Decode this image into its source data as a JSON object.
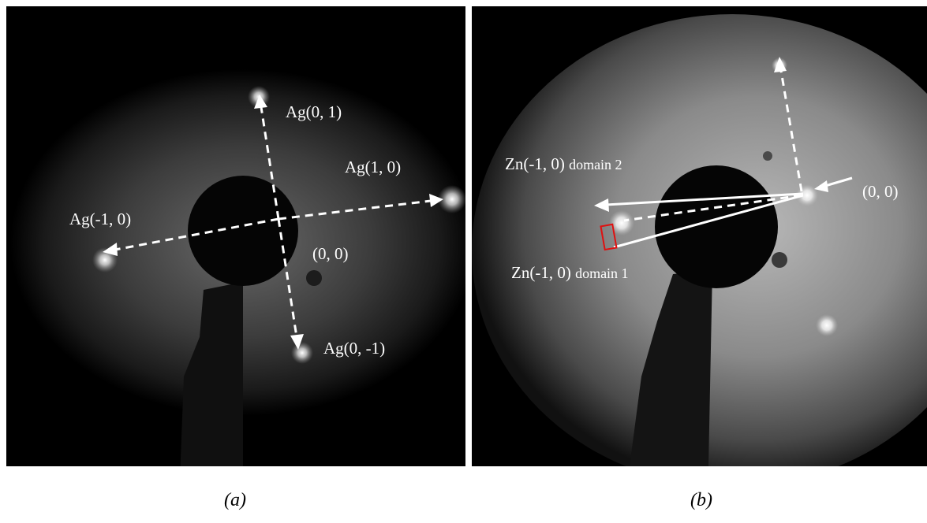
{
  "panels": [
    {
      "id": "a",
      "caption": "(a)",
      "labels": {
        "ag_01": "Ag(0, 1)",
        "ag_10": "Ag(1, 0)",
        "ag_m10": "Ag(-1, 0)",
        "origin": "(0, 0)",
        "ag_0m1": "Ag(0, -1)"
      }
    },
    {
      "id": "b",
      "caption": "(b)",
      "labels": {
        "zn_domain2_index": "Zn(-1, 0)",
        "zn_domain2_name": "domain 2",
        "zn_domain1_index": "Zn(-1, 0)",
        "zn_domain1_name": "domain 1",
        "origin": "(0, 0)"
      }
    }
  ],
  "colors": {
    "background": "#000000",
    "annotation": "#ffffff",
    "highlight_box": "#e01010"
  }
}
